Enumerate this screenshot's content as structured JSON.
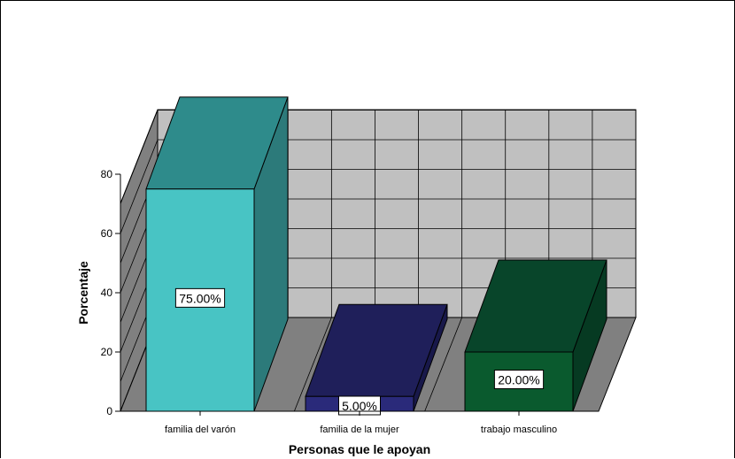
{
  "chart_data": {
    "type": "bar",
    "style": "3d",
    "xlabel": "Personas que le apoyan",
    "ylabel": "Porcentaje",
    "ylim": [
      0,
      80
    ],
    "yticks": [
      0,
      20,
      40,
      60,
      80
    ],
    "categories": [
      "familia del varón",
      "familia de la mujer",
      "trabajo masculino"
    ],
    "values": [
      75.0,
      5.0,
      20.0
    ],
    "data_labels": [
      "75.00%",
      "5.00%",
      "20.00%"
    ],
    "bar_colors": [
      {
        "front": "#48c4c4",
        "top": "#2e8b8b",
        "side": "#2c7a7a"
      },
      {
        "front": "#2a2a7a",
        "top": "#1f1f5a",
        "side": "#18184a"
      },
      {
        "front": "#0a5a2e",
        "top": "#08452a",
        "side": "#063a22"
      }
    ],
    "wall_color": "#c0c0c0",
    "floor_color": "#808080",
    "grid": true,
    "legend": "none"
  }
}
